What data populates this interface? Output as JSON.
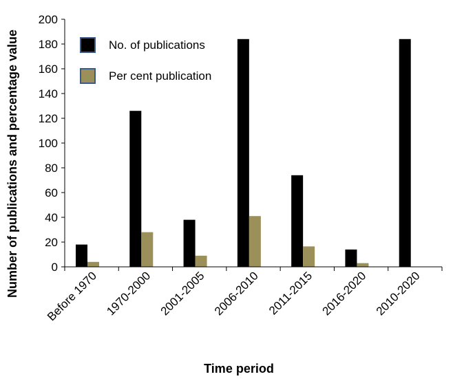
{
  "chart_data": {
    "type": "bar",
    "xlabel": "Time period",
    "ylabel": "Number of publications and percentage value",
    "ylim": [
      0,
      200
    ],
    "yticks": [
      0,
      20,
      40,
      60,
      80,
      100,
      120,
      140,
      160,
      180,
      200
    ],
    "grid": false,
    "legend_position": "top-left",
    "categories": [
      "Before 1970",
      "1970-2000",
      "2001-2005",
      "2006-2010",
      "2011-2015",
      "2016-2020",
      "2010-2020"
    ],
    "series": [
      {
        "name": "No. of publications",
        "color": "#000000",
        "values": [
          18,
          126,
          38,
          184,
          74,
          14,
          184
        ]
      },
      {
        "name": "Per cent publication",
        "color": "#9b8f5a",
        "values": [
          4,
          28,
          9,
          41,
          16.5,
          3,
          null
        ]
      }
    ]
  }
}
